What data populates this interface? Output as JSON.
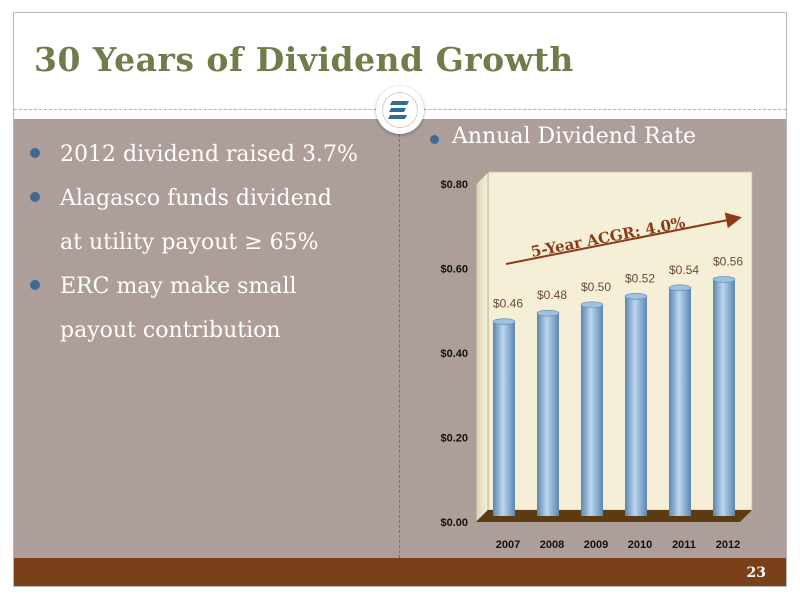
{
  "slide": {
    "title": "30 Years of Dividend Growth",
    "page_number": "23",
    "bullets": [
      {
        "line1": "2012 dividend raised 3.7%",
        "line2": ""
      },
      {
        "line1": "Alagasco funds dividend",
        "line2": "at utility payout ≥ 65%"
      },
      {
        "line1": "ERC may make small",
        "line2": "payout contribution"
      }
    ],
    "chart_heading": "Annual Dividend Rate",
    "logo_icon": "energen-e-logo-icon"
  },
  "colors": {
    "title": "#6e7d4a",
    "panel": "#ae9e9a",
    "footer": "#7a4019",
    "bar": "#8db3d9",
    "accent_text": "#8b3a17",
    "bullet_dot": "#3f6a94"
  },
  "chart_data": {
    "type": "bar",
    "title": "Annual Dividend Rate",
    "categories": [
      "2007",
      "2008",
      "2009",
      "2010",
      "2011",
      "2012"
    ],
    "values": [
      0.46,
      0.48,
      0.5,
      0.52,
      0.54,
      0.56
    ],
    "data_labels": [
      "$0.46",
      "$0.48",
      "$0.50",
      "$0.52",
      "$0.54",
      "$0.56"
    ],
    "y_ticks": [
      0,
      0.2,
      0.4,
      0.6,
      0.8
    ],
    "y_tick_labels": [
      "$0.00",
      "$0.20",
      "$0.40",
      "$0.60",
      "$0.80"
    ],
    "ylim": [
      0,
      0.8
    ],
    "xlabel": "",
    "ylabel": "",
    "grid": false,
    "annotation": "5-Year ACGR: 4.0%"
  }
}
